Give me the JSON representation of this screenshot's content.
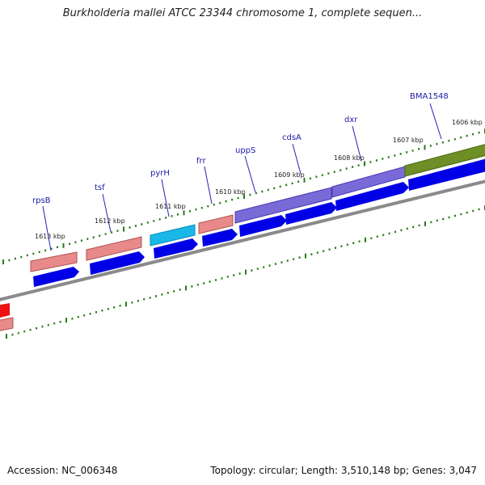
{
  "title": "Burkholderia mallei ATCC 23344 chromosome 1, complete sequen...",
  "footer": {
    "accession": "Accession: NC_006348",
    "summary": "Topology: circular; Length: 3,510,148 bp; Genes: 3,047"
  },
  "colors": {
    "backbone": "#8a8a8a",
    "cds_arrow": "#0000e6",
    "tick": "#2a7a1a",
    "label_line": "#2222bb",
    "feature_salmon": "#e98a8a",
    "feature_cyan": "#19b8e8",
    "feature_purple": "#7a6ad8",
    "feature_olive": "#6e8e26",
    "feature_red": "#ee1111"
  },
  "gene_labels": [
    "rpsB",
    "tsf",
    "pyrH",
    "frr",
    "uppS",
    "cdsA",
    "dxr",
    "BMA1548"
  ],
  "tick_labels": [
    "1613 kbp",
    "1612 kbp",
    "1611 kbp",
    "1610 kbp",
    "1609 kbp",
    "1608 kbp",
    "1607 kbp",
    "1606 kbp"
  ]
}
